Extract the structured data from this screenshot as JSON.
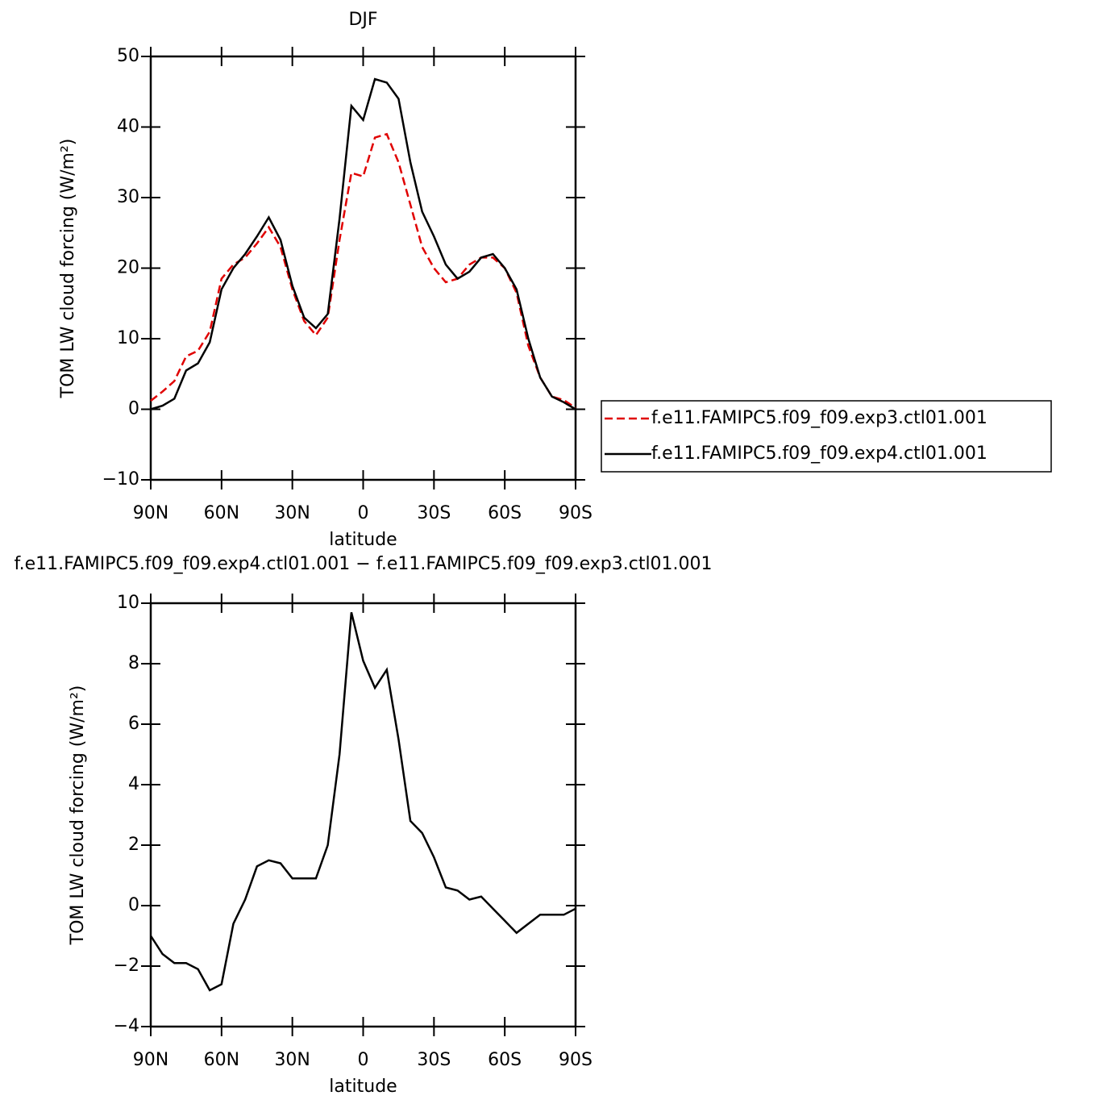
{
  "chart_data": [
    {
      "type": "line",
      "title": "DJF",
      "xlabel": "latitude",
      "ylabel": "TOM LW cloud forcing (W/m²)",
      "x": [
        90,
        85,
        80,
        75,
        70,
        65,
        60,
        55,
        50,
        45,
        40,
        35,
        30,
        25,
        20,
        15,
        10,
        5,
        0,
        -5,
        -10,
        -15,
        -20,
        -25,
        -30,
        -35,
        -40,
        -45,
        -50,
        -55,
        -60,
        -65,
        -70,
        -75,
        -80,
        -85,
        -90
      ],
      "xlim": [
        90,
        -90
      ],
      "xticks": [
        {
          "value": 90,
          "label": "90N"
        },
        {
          "value": 60,
          "label": "60N"
        },
        {
          "value": 30,
          "label": "30N"
        },
        0,
        {
          "value": -30,
          "label": "30S"
        },
        {
          "value": -60,
          "label": "60S"
        },
        {
          "value": -90,
          "label": "90S"
        }
      ],
      "ylim": [
        -10,
        50
      ],
      "yticks": [
        {
          "value": -10,
          "label": "−10"
        },
        0,
        10,
        20,
        30,
        40,
        50
      ],
      "legend": "right",
      "series": [
        {
          "name": "f.e11.FAMIPC5.f09_f09.exp3.ctl01.001",
          "color": "#e00000",
          "dash": "dashed",
          "values": [
            1.2,
            2.5,
            4,
            7.5,
            8.3,
            11,
            18.5,
            20.5,
            21.5,
            23.5,
            25.8,
            23,
            17,
            12.5,
            10.5,
            13,
            24,
            33.5,
            33,
            38.5,
            39,
            35,
            29,
            23,
            20,
            18,
            18.5,
            20.5,
            21.5,
            21.5,
            20,
            16.5,
            9,
            4.5,
            1.8,
            1.3,
            0.2
          ]
        },
        {
          "name": "f.e11.FAMIPC5.f09_f09.exp4.ctl01.001",
          "color": "#000000",
          "dash": "solid",
          "values": [
            0,
            0.5,
            1.5,
            5.5,
            6.5,
            9.5,
            17,
            20,
            22,
            24.5,
            27.2,
            24,
            17.5,
            13,
            11.5,
            13.5,
            27,
            43,
            41,
            46.8,
            46.3,
            44,
            35,
            28,
            24.5,
            20.5,
            18.5,
            19.5,
            21.5,
            22,
            20,
            17,
            10,
            4.5,
            1.8,
            1,
            0
          ]
        }
      ]
    },
    {
      "type": "line",
      "title": "f.e11.FAMIPC5.f09_f09.exp4.ctl01.001 − f.e11.FAMIPC5.f09_f09.exp3.ctl01.001",
      "xlabel": "latitude",
      "ylabel": "TOM LW cloud forcing (W/m²)",
      "x": [
        90,
        85,
        80,
        75,
        70,
        65,
        60,
        55,
        50,
        45,
        40,
        35,
        30,
        25,
        20,
        15,
        10,
        5,
        0,
        -5,
        -10,
        -15,
        -20,
        -25,
        -30,
        -35,
        -40,
        -45,
        -50,
        -55,
        -60,
        -65,
        -70,
        -75,
        -80,
        -85,
        -90
      ],
      "xlim": [
        90,
        -90
      ],
      "xticks": [
        {
          "value": 90,
          "label": "90N"
        },
        {
          "value": 60,
          "label": "60N"
        },
        {
          "value": 30,
          "label": "30N"
        },
        0,
        {
          "value": -30,
          "label": "30S"
        },
        {
          "value": -60,
          "label": "60S"
        },
        {
          "value": -90,
          "label": "90S"
        }
      ],
      "ylim": [
        -4,
        10
      ],
      "yticks": [
        {
          "value": -4,
          "label": "−4"
        },
        {
          "value": -2,
          "label": "−2"
        },
        0,
        2,
        4,
        6,
        8,
        10
      ],
      "color": "#000000",
      "values": [
        -1,
        -1.6,
        -1.9,
        -1.9,
        -2.1,
        -2.8,
        -2.6,
        -0.6,
        0.2,
        1.3,
        1.5,
        1.4,
        0.9,
        0.9,
        0.9,
        2,
        5,
        9.7,
        8.1,
        7.2,
        7.8,
        5.5,
        2.8,
        2.4,
        1.6,
        0.6,
        0.5,
        0.2,
        0.3,
        -0.1,
        -0.5,
        -0.9,
        -0.6,
        -0.3,
        -0.3,
        -0.3,
        -0.1
      ]
    }
  ]
}
